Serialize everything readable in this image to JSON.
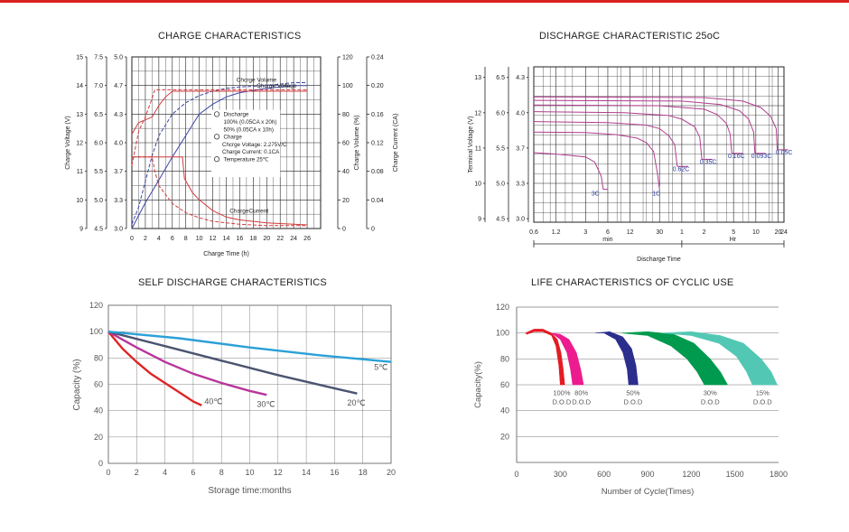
{
  "accent_color": "#d9201d",
  "chart_data": [
    {
      "id": "charge",
      "type": "line",
      "title": "CHARGE CHARACTERISTICS",
      "xlabel": "Charge Time (h)",
      "xlim": [
        0,
        28
      ],
      "xticks": [
        0,
        2,
        4,
        6,
        8,
        10,
        12,
        14,
        16,
        18,
        20,
        22,
        24,
        26
      ],
      "left_axes": [
        {
          "label": "Charge Voltage  (V)",
          "ticks": [
            "15",
            "14",
            "13",
            "12",
            "11",
            "10",
            "9"
          ]
        },
        {
          "label": "",
          "ticks": [
            "7.5",
            "7.0",
            "6.5",
            "6.0",
            "5.5",
            "5.0",
            "4.5"
          ]
        },
        {
          "label": "",
          "ticks": [
            "5.0",
            "4.7",
            "4.3",
            "4.0",
            "3.7",
            "3.3",
            "3.0"
          ]
        }
      ],
      "right_axes": [
        {
          "label": "Charge Volume  (%)",
          "ticks": [
            "120",
            "100",
            "80",
            "60",
            "40",
            "20",
            "0"
          ]
        },
        {
          "label": "Charge Current (CA)",
          "ticks": [
            "0.24",
            "0.20",
            "0.16",
            "0.12",
            "0.08",
            "0.04",
            "0"
          ]
        }
      ],
      "curve_labels": [
        "Chcrge Volume",
        "Chcrge Voltage",
        "ChargeCurrent"
      ],
      "legend_lines": [
        "Discharge",
        "100%  (0.05CA x 20h)",
        "50%  (0.05CA x 10h)",
        "Charge",
        "Chcrge Voltage: 2.275V/C",
        "Charge Current: 0.1CA",
        "Temperature 25℃"
      ],
      "series": [
        {
          "style": "blue-dashed",
          "x": [
            0,
            1,
            2,
            3,
            4,
            6,
            8,
            10,
            12,
            14,
            16,
            20,
            24,
            26
          ],
          "volume_pct": [
            3,
            15,
            33,
            51,
            65,
            80,
            88,
            93,
            96,
            98,
            99,
            100,
            102,
            102
          ]
        },
        {
          "style": "blue-solid",
          "x": [
            0,
            2,
            4,
            6,
            8,
            10,
            12,
            14,
            16,
            20,
            24,
            26
          ],
          "volume_pct": [
            0,
            18,
            34,
            50,
            65,
            80,
            87,
            92,
            95,
            98,
            100,
            100
          ]
        },
        {
          "style": "red-dashed",
          "x": [
            0,
            1,
            2,
            3,
            3.4,
            6,
            26
          ],
          "voltage_V": [
            11.2,
            12.4,
            12.9,
            13.55,
            13.85,
            13.85,
            13.85
          ]
        },
        {
          "style": "red-solid",
          "x": [
            0,
            1,
            2,
            3,
            4,
            5,
            6,
            26
          ],
          "voltage_V": [
            12.3,
            12.7,
            12.8,
            12.9,
            13.3,
            13.6,
            13.8,
            13.8
          ]
        },
        {
          "style": "red-dashed",
          "x": [
            0,
            3,
            3.4,
            4,
            6,
            8,
            10,
            12,
            16,
            20,
            26
          ],
          "current_CA": [
            0.1,
            0.1,
            0.08,
            0.06,
            0.035,
            0.022,
            0.015,
            0.01,
            0.006,
            0.004,
            0.004
          ]
        },
        {
          "style": "red-solid",
          "x": [
            0,
            7.5,
            7.8,
            9,
            10,
            12,
            14,
            16,
            18,
            20,
            22,
            24,
            26
          ],
          "current_CA": [
            0.1,
            0.1,
            0.07,
            0.05,
            0.04,
            0.025,
            0.016,
            0.012,
            0.01,
            0.008,
            0.007,
            0.006,
            0.005
          ]
        }
      ]
    },
    {
      "id": "discharge",
      "type": "line",
      "title": "DISCHARGE CHARACTERISTIC 25oC",
      "ylabel": "Terminal Voltage  (V)",
      "xlabel": "Discharge Time",
      "x_units": [
        "min",
        "Hr"
      ],
      "xticks": [
        "0.6",
        "1.2",
        "3",
        "6",
        "12",
        "30",
        "1",
        "2",
        "5",
        "10",
        "20",
        "24"
      ],
      "left_axes": [
        {
          "ticks": [
            "13",
            "12",
            "11",
            "10",
            "9"
          ]
        },
        {
          "ticks": [
            "6.5",
            "6.0",
            "5.5",
            "5.0",
            "4.5"
          ]
        },
        {
          "ticks": [
            "4.3",
            "4.0",
            "3.7",
            "3.3",
            "3.0"
          ]
        }
      ],
      "series": [
        {
          "name": "3C",
          "t_min": [
            0.6,
            1.2,
            3,
            4,
            4.9,
            5.2,
            6
          ],
          "voltage_V": [
            10.87,
            10.83,
            10.75,
            10.6,
            10.2,
            9.83,
            9.83
          ]
        },
        {
          "name": "1C",
          "t_min": [
            0.6,
            3,
            8,
            15,
            20,
            25,
            28,
            30
          ],
          "voltage_V": [
            11.45,
            11.44,
            11.38,
            11.28,
            11.15,
            10.9,
            10.3,
            9.83
          ]
        },
        {
          "name": "0.62C",
          "t_min": [
            0.6,
            6,
            20,
            30,
            40,
            48,
            52
          ],
          "voltage_V": [
            11.75,
            11.72,
            11.65,
            11.55,
            11.35,
            11.1,
            10.48
          ]
        },
        {
          "name": "0.35C",
          "t_min": [
            0.6,
            10,
            40,
            60,
            90,
            105,
            112
          ],
          "voltage_V": [
            12.03,
            12.0,
            11.92,
            11.82,
            11.6,
            11.3,
            10.68
          ]
        },
        {
          "name": "0.16C",
          "t_min": [
            0.6,
            30,
            120,
            180,
            240,
            270,
            284
          ],
          "voltage_V": [
            12.22,
            12.2,
            12.1,
            11.95,
            11.7,
            11.4,
            10.85
          ]
        },
        {
          "name": "0.093C",
          "t_min": [
            0.6,
            60,
            200,
            360,
            480,
            560,
            582
          ],
          "voltage_V": [
            12.35,
            12.33,
            12.23,
            12.06,
            11.82,
            11.45,
            10.85
          ]
        },
        {
          "name": "0.05C",
          "t_min": [
            0.6,
            120,
            400,
            700,
            950,
            1130,
            1170
          ],
          "voltage_V": [
            12.45,
            12.43,
            12.33,
            12.15,
            11.9,
            11.55,
            10.95
          ]
        }
      ]
    },
    {
      "id": "self",
      "type": "line",
      "title": "SELF DISCHARGE CHARACTERISTICS",
      "xlabel": "Storage time:months",
      "ylabel": "Capacity (%)",
      "xlim": [
        0,
        20
      ],
      "ylim": [
        0,
        120
      ],
      "xticks": [
        0,
        2,
        4,
        6,
        8,
        10,
        12,
        14,
        16,
        18,
        20
      ],
      "yticks": [
        0,
        20,
        40,
        60,
        80,
        100,
        120
      ],
      "series": [
        {
          "name": "40℃",
          "color": "#e02424",
          "x": [
            0,
            1,
            2,
            3,
            4,
            5,
            6,
            6.6
          ],
          "y": [
            100,
            87,
            77,
            68,
            61,
            54,
            47,
            44
          ]
        },
        {
          "name": "30℃",
          "color": "#b8359b",
          "x": [
            0,
            2,
            4,
            6,
            8,
            10,
            11.2
          ],
          "y": [
            100,
            88,
            77,
            68,
            61,
            55,
            52
          ]
        },
        {
          "name": "20℃",
          "color": "#4b5470",
          "x": [
            0,
            4,
            8,
            12,
            16,
            17.6
          ],
          "y": [
            100,
            89,
            78,
            67,
            57,
            53
          ]
        },
        {
          "name": "5℃",
          "color": "#2ba0d8",
          "x": [
            0,
            5,
            10,
            15,
            20
          ],
          "y": [
            100,
            95,
            88,
            82,
            77
          ]
        }
      ]
    },
    {
      "id": "life",
      "type": "area",
      "title": "LIFE CHARACTERISTICS OF CYCLIC USE",
      "xlabel": "Number of Cycle(Times)",
      "ylabel": "Capacity(%)",
      "xlim": [
        0,
        1800
      ],
      "ylim": [
        0,
        120
      ],
      "xticks": [
        0,
        300,
        600,
        900,
        1200,
        1500,
        1800
      ],
      "yticks": [
        20,
        40,
        60,
        80,
        100,
        120
      ],
      "series": [
        {
          "name": "100%",
          "sub": "D.O.D",
          "color": "#e41b23",
          "band": [
            [
              60,
              100
            ],
            [
              120,
              103
            ],
            [
              180,
              103
            ],
            [
              240,
              100
            ],
            [
              280,
              95
            ],
            [
              305,
              85
            ],
            [
              320,
              72
            ],
            [
              330,
              60
            ],
            [
              300,
              60
            ],
            [
              290,
              75
            ],
            [
              270,
              90
            ],
            [
              240,
              98
            ],
            [
              180,
              101
            ],
            [
              120,
              101
            ],
            [
              70,
              99
            ]
          ]
        },
        {
          "name": "80%",
          "sub": "D.O.D",
          "color": "#ec1c8e",
          "band": [
            [
              240,
              100
            ],
            [
              300,
              99
            ],
            [
              360,
              95
            ],
            [
              410,
              85
            ],
            [
              440,
              72
            ],
            [
              460,
              60
            ],
            [
              385,
              60
            ],
            [
              370,
              72
            ],
            [
              345,
              85
            ],
            [
              300,
              95
            ]
          ]
        },
        {
          "name": "50%",
          "sub": "D.O.D",
          "color": "#2b2e8c",
          "band": [
            [
              540,
              100
            ],
            [
              640,
              101
            ],
            [
              730,
              97
            ],
            [
              790,
              88
            ],
            [
              820,
              75
            ],
            [
              835,
              60
            ],
            [
              770,
              60
            ],
            [
              760,
              72
            ],
            [
              730,
              85
            ],
            [
              680,
              95
            ],
            [
              600,
              100
            ]
          ]
        },
        {
          "name": "30%",
          "sub": "D.O.D",
          "color": "#009a4e",
          "band": [
            [
              720,
              100
            ],
            [
              900,
              101
            ],
            [
              1080,
              99
            ],
            [
              1220,
              92
            ],
            [
              1330,
              80
            ],
            [
              1400,
              70
            ],
            [
              1450,
              60
            ],
            [
              1290,
              60
            ],
            [
              1240,
              70
            ],
            [
              1170,
              80
            ],
            [
              1060,
              90
            ],
            [
              900,
              98
            ]
          ]
        },
        {
          "name": "15%",
          "sub": "D.O.D",
          "color": "#52c8b4",
          "band": [
            [
              1000,
              100
            ],
            [
              1200,
              101
            ],
            [
              1400,
              98
            ],
            [
              1560,
              92
            ],
            [
              1680,
              80
            ],
            [
              1750,
              70
            ],
            [
              1790,
              60
            ],
            [
              1620,
              60
            ],
            [
              1580,
              70
            ],
            [
              1510,
              82
            ],
            [
              1390,
              92
            ],
            [
              1200,
              98
            ]
          ]
        }
      ]
    }
  ]
}
